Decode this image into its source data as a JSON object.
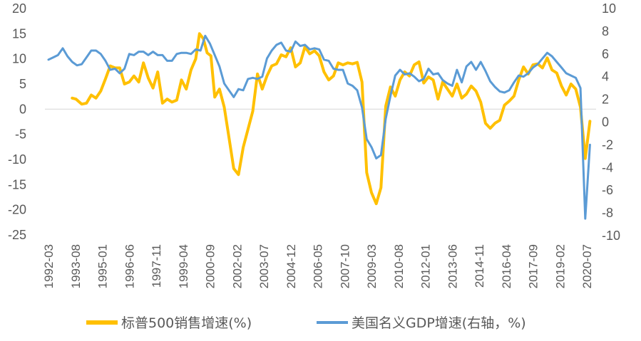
{
  "chart_data": {
    "type": "line",
    "title": "",
    "xlabel": "",
    "ylabel": "",
    "y_left": {
      "min": -25,
      "max": 20,
      "ticks": [
        20,
        15,
        10,
        5,
        0,
        -5,
        -10,
        -15,
        -20,
        -25
      ]
    },
    "y_right": {
      "min": -10,
      "max": 10,
      "ticks": [
        10,
        8,
        6,
        4,
        2,
        0,
        -2,
        -4,
        -6,
        -8,
        -10
      ]
    },
    "x_tick_labels": [
      "1992-03",
      "1993-08",
      "1995-01",
      "1996-06",
      "1997-11",
      "1999-04",
      "2000-09",
      "2002-02",
      "2003-07",
      "2004-12",
      "2006-05",
      "2007-10",
      "2009-03",
      "2010-08",
      "2012-01",
      "2013-06",
      "2014-11",
      "2016-04",
      "2017-09",
      "2019-02",
      "2020-07"
    ],
    "zero_line": true,
    "legend_position": "bottom",
    "series": [
      {
        "name": "标普500销售增速(%)",
        "axis": "left",
        "color": "#FFC000",
        "points": [
          [
            1993.5,
            2.2
          ],
          [
            1993.7,
            2.0
          ],
          [
            1994.0,
            1.0
          ],
          [
            1994.25,
            1.2
          ],
          [
            1994.5,
            2.8
          ],
          [
            1994.75,
            2.2
          ],
          [
            1995.0,
            3.6
          ],
          [
            1995.25,
            6.0
          ],
          [
            1995.5,
            8.6
          ],
          [
            1995.75,
            8.2
          ],
          [
            1996.0,
            8.2
          ],
          [
            1996.25,
            5.0
          ],
          [
            1996.5,
            5.4
          ],
          [
            1996.75,
            6.6
          ],
          [
            1997.0,
            5.4
          ],
          [
            1997.25,
            9.2
          ],
          [
            1997.5,
            6.2
          ],
          [
            1997.75,
            4.2
          ],
          [
            1998.0,
            7.4
          ],
          [
            1998.25,
            1.2
          ],
          [
            1998.5,
            2.0
          ],
          [
            1998.75,
            1.4
          ],
          [
            1999.0,
            1.8
          ],
          [
            1999.25,
            5.8
          ],
          [
            1999.5,
            4.0
          ],
          [
            1999.75,
            7.8
          ],
          [
            2000.0,
            10.0
          ],
          [
            2000.2,
            15.0
          ],
          [
            2000.4,
            14.0
          ],
          [
            2000.6,
            11.2
          ],
          [
            2000.8,
            10.6
          ],
          [
            2001.0,
            2.4
          ],
          [
            2001.25,
            4.0
          ],
          [
            2001.5,
            0.4
          ],
          [
            2001.75,
            -5.6
          ],
          [
            2002.0,
            -11.8
          ],
          [
            2002.25,
            -13.0
          ],
          [
            2002.5,
            -7.6
          ],
          [
            2002.75,
            -4.0
          ],
          [
            2003.0,
            -0.4
          ],
          [
            2003.25,
            7.0
          ],
          [
            2003.5,
            4.0
          ],
          [
            2003.75,
            6.6
          ],
          [
            2004.0,
            8.6
          ],
          [
            2004.25,
            9.0
          ],
          [
            2004.5,
            10.8
          ],
          [
            2004.75,
            10.4
          ],
          [
            2005.0,
            12.2
          ],
          [
            2005.25,
            8.4
          ],
          [
            2005.5,
            9.2
          ],
          [
            2005.75,
            12.4
          ],
          [
            2006.0,
            11.0
          ],
          [
            2006.25,
            11.6
          ],
          [
            2006.5,
            10.6
          ],
          [
            2006.75,
            7.4
          ],
          [
            2007.0,
            5.8
          ],
          [
            2007.25,
            6.6
          ],
          [
            2007.5,
            9.2
          ],
          [
            2007.75,
            8.8
          ],
          [
            2008.0,
            9.2
          ],
          [
            2008.25,
            9.0
          ],
          [
            2008.5,
            9.3
          ],
          [
            2008.75,
            5.4
          ],
          [
            2009.0,
            -12.6
          ],
          [
            2009.25,
            -16.6
          ],
          [
            2009.5,
            -18.8
          ],
          [
            2009.75,
            -15.6
          ],
          [
            2010.0,
            0.6
          ],
          [
            2010.25,
            4.4
          ],
          [
            2010.5,
            2.6
          ],
          [
            2010.75,
            5.8
          ],
          [
            2011.0,
            7.4
          ],
          [
            2011.25,
            6.6
          ],
          [
            2011.5,
            8.8
          ],
          [
            2011.75,
            9.4
          ],
          [
            2012.0,
            5.2
          ],
          [
            2012.25,
            6.4
          ],
          [
            2012.5,
            5.8
          ],
          [
            2012.75,
            2.0
          ],
          [
            2013.0,
            5.4
          ],
          [
            2013.25,
            4.0
          ],
          [
            2013.5,
            2.6
          ],
          [
            2013.75,
            5.0
          ],
          [
            2014.0,
            2.2
          ],
          [
            2014.25,
            3.0
          ],
          [
            2014.5,
            4.6
          ],
          [
            2014.75,
            3.6
          ],
          [
            2015.0,
            1.4
          ],
          [
            2015.25,
            -2.8
          ],
          [
            2015.5,
            -3.8
          ],
          [
            2015.75,
            -2.8
          ],
          [
            2016.0,
            -2.2
          ],
          [
            2016.25,
            0.8
          ],
          [
            2016.5,
            1.6
          ],
          [
            2016.75,
            2.6
          ],
          [
            2017.0,
            5.8
          ],
          [
            2017.25,
            8.4
          ],
          [
            2017.5,
            7.0
          ],
          [
            2017.75,
            8.8
          ],
          [
            2018.0,
            9.0
          ],
          [
            2018.25,
            8.2
          ],
          [
            2018.5,
            10.2
          ],
          [
            2018.75,
            7.8
          ],
          [
            2019.0,
            7.2
          ],
          [
            2019.25,
            4.6
          ],
          [
            2019.5,
            2.8
          ],
          [
            2019.75,
            5.0
          ],
          [
            2020.0,
            4.0
          ],
          [
            2020.25,
            0.4
          ],
          [
            2020.5,
            -9.8
          ],
          [
            2020.75,
            -2.4
          ]
        ]
      },
      {
        "name": "美国名义GDP增速(右轴，%)",
        "axis": "right",
        "color": "#5B9BD5",
        "points": [
          [
            1992.25,
            5.5
          ],
          [
            1992.5,
            5.7
          ],
          [
            1992.75,
            5.9
          ],
          [
            1993.0,
            6.5
          ],
          [
            1993.25,
            5.8
          ],
          [
            1993.5,
            5.3
          ],
          [
            1993.75,
            5.0
          ],
          [
            1994.0,
            5.1
          ],
          [
            1994.25,
            5.7
          ],
          [
            1994.5,
            6.3
          ],
          [
            1994.75,
            6.3
          ],
          [
            1995.0,
            6.0
          ],
          [
            1995.25,
            5.4
          ],
          [
            1995.5,
            4.6
          ],
          [
            1995.75,
            4.7
          ],
          [
            1996.0,
            4.3
          ],
          [
            1996.25,
            4.7
          ],
          [
            1996.5,
            6.0
          ],
          [
            1996.75,
            5.9
          ],
          [
            1997.0,
            6.2
          ],
          [
            1997.25,
            6.2
          ],
          [
            1997.5,
            5.9
          ],
          [
            1997.75,
            6.2
          ],
          [
            1998.0,
            5.9
          ],
          [
            1998.25,
            5.9
          ],
          [
            1998.5,
            5.4
          ],
          [
            1998.75,
            5.4
          ],
          [
            1999.0,
            6.0
          ],
          [
            1999.25,
            6.1
          ],
          [
            1999.5,
            6.1
          ],
          [
            1999.75,
            6.0
          ],
          [
            2000.0,
            6.4
          ],
          [
            2000.25,
            6.3
          ],
          [
            2000.5,
            7.6
          ],
          [
            2000.75,
            6.9
          ],
          [
            2001.0,
            5.9
          ],
          [
            2001.25,
            4.9
          ],
          [
            2001.5,
            3.4
          ],
          [
            2001.75,
            2.8
          ],
          [
            2002.0,
            2.2
          ],
          [
            2002.25,
            2.9
          ],
          [
            2002.5,
            2.8
          ],
          [
            2002.75,
            3.8
          ],
          [
            2003.0,
            3.9
          ],
          [
            2003.25,
            3.8
          ],
          [
            2003.5,
            4.0
          ],
          [
            2003.75,
            5.6
          ],
          [
            2004.0,
            6.3
          ],
          [
            2004.25,
            6.8
          ],
          [
            2004.5,
            7.0
          ],
          [
            2004.75,
            6.3
          ],
          [
            2005.0,
            6.2
          ],
          [
            2005.25,
            7.1
          ],
          [
            2005.5,
            6.7
          ],
          [
            2005.75,
            6.8
          ],
          [
            2006.0,
            6.4
          ],
          [
            2006.25,
            6.5
          ],
          [
            2006.5,
            6.4
          ],
          [
            2006.75,
            5.5
          ],
          [
            2007.0,
            5.4
          ],
          [
            2007.25,
            4.7
          ],
          [
            2007.5,
            4.6
          ],
          [
            2007.75,
            4.6
          ],
          [
            2008.0,
            3.4
          ],
          [
            2008.25,
            3.2
          ],
          [
            2008.5,
            2.8
          ],
          [
            2008.75,
            1.3
          ],
          [
            2009.0,
            -1.5
          ],
          [
            2009.25,
            -2.2
          ],
          [
            2009.5,
            -3.2
          ],
          [
            2009.75,
            -2.9
          ],
          [
            2010.0,
            0.3
          ],
          [
            2010.25,
            2.3
          ],
          [
            2010.5,
            4.1
          ],
          [
            2010.75,
            4.6
          ],
          [
            2011.0,
            4.2
          ],
          [
            2011.25,
            4.3
          ],
          [
            2011.5,
            4.0
          ],
          [
            2011.75,
            3.6
          ],
          [
            2012.0,
            3.8
          ],
          [
            2012.25,
            4.7
          ],
          [
            2012.5,
            4.2
          ],
          [
            2012.75,
            4.3
          ],
          [
            2013.0,
            3.7
          ],
          [
            2013.25,
            3.4
          ],
          [
            2013.5,
            3.2
          ],
          [
            2013.75,
            4.6
          ],
          [
            2014.0,
            3.5
          ],
          [
            2014.25,
            4.9
          ],
          [
            2014.5,
            5.3
          ],
          [
            2014.75,
            4.6
          ],
          [
            2015.0,
            5.3
          ],
          [
            2015.25,
            4.5
          ],
          [
            2015.5,
            3.6
          ],
          [
            2015.75,
            3.1
          ],
          [
            2016.0,
            2.7
          ],
          [
            2016.25,
            2.6
          ],
          [
            2016.5,
            2.8
          ],
          [
            2016.75,
            3.5
          ],
          [
            2017.0,
            4.1
          ],
          [
            2017.25,
            4.0
          ],
          [
            2017.5,
            4.3
          ],
          [
            2017.75,
            4.8
          ],
          [
            2018.0,
            5.1
          ],
          [
            2018.25,
            5.6
          ],
          [
            2018.5,
            6.1
          ],
          [
            2018.75,
            5.8
          ],
          [
            2019.0,
            5.3
          ],
          [
            2019.25,
            4.8
          ],
          [
            2019.5,
            4.3
          ],
          [
            2019.75,
            4.1
          ],
          [
            2020.0,
            3.9
          ],
          [
            2020.25,
            3.0
          ],
          [
            2020.5,
            -8.5
          ],
          [
            2020.75,
            -2.0
          ]
        ]
      }
    ]
  }
}
